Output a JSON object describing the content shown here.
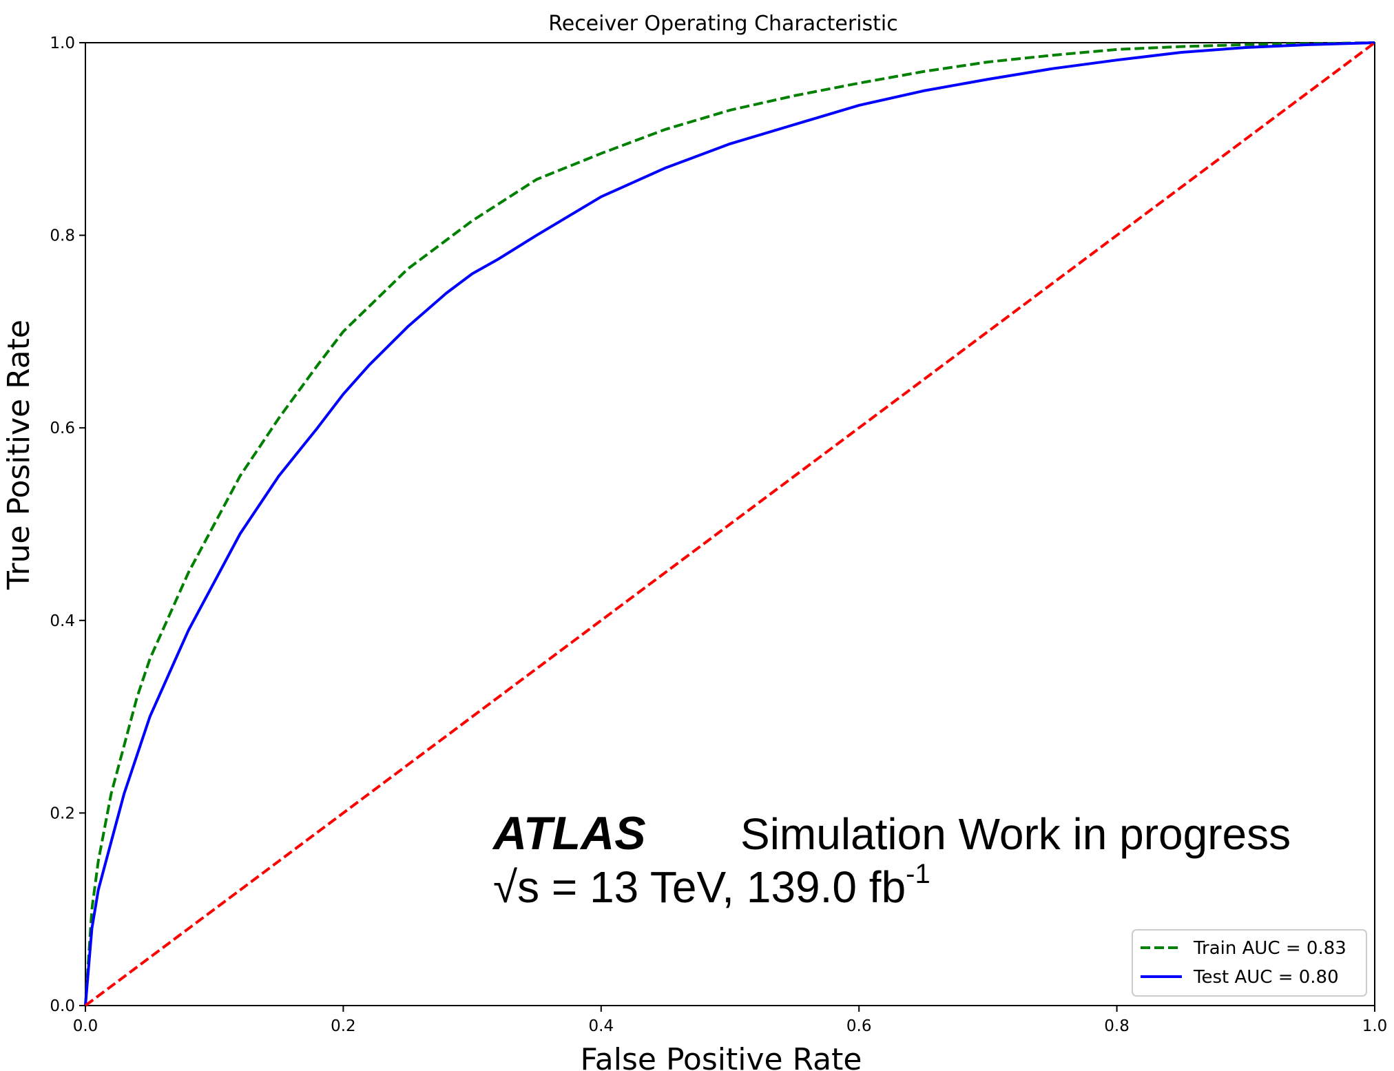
{
  "chart_data": {
    "type": "line",
    "title": "Receiver Operating Characteristic",
    "xlabel": "False Positive Rate",
    "ylabel": "True Positive Rate",
    "xlim": [
      0.0,
      1.0
    ],
    "ylim": [
      0.0,
      1.0
    ],
    "xticks": [
      "0.0",
      "0.2",
      "0.4",
      "0.6",
      "0.8",
      "1.0"
    ],
    "yticks": [
      "0.0",
      "0.2",
      "0.4",
      "0.6",
      "0.8",
      "1.0"
    ],
    "grid": false,
    "legend_position": "lower-right",
    "series": [
      {
        "name": "Train AUC = 0.83",
        "color": "#008000",
        "dash": "dashed",
        "x": [
          0.0,
          0.005,
          0.01,
          0.02,
          0.03,
          0.04,
          0.05,
          0.06,
          0.08,
          0.1,
          0.12,
          0.15,
          0.18,
          0.2,
          0.25,
          0.3,
          0.35,
          0.4,
          0.45,
          0.5,
          0.55,
          0.6,
          0.65,
          0.7,
          0.75,
          0.8,
          0.85,
          0.9,
          0.95,
          1.0
        ],
        "y": [
          0.0,
          0.1,
          0.15,
          0.22,
          0.27,
          0.32,
          0.36,
          0.39,
          0.45,
          0.5,
          0.55,
          0.61,
          0.665,
          0.7,
          0.765,
          0.815,
          0.858,
          0.885,
          0.91,
          0.93,
          0.945,
          0.958,
          0.97,
          0.98,
          0.987,
          0.993,
          0.996,
          0.998,
          0.999,
          1.0
        ]
      },
      {
        "name": "Test AUC = 0.80",
        "color": "#0000ff",
        "dash": "solid",
        "x": [
          0.0,
          0.005,
          0.01,
          0.02,
          0.03,
          0.04,
          0.05,
          0.06,
          0.07,
          0.08,
          0.1,
          0.12,
          0.15,
          0.18,
          0.2,
          0.22,
          0.25,
          0.28,
          0.3,
          0.32,
          0.35,
          0.4,
          0.45,
          0.5,
          0.55,
          0.6,
          0.65,
          0.7,
          0.75,
          0.8,
          0.85,
          0.9,
          0.95,
          1.0
        ],
        "y": [
          0.0,
          0.08,
          0.12,
          0.17,
          0.22,
          0.26,
          0.3,
          0.33,
          0.36,
          0.39,
          0.44,
          0.49,
          0.55,
          0.6,
          0.635,
          0.665,
          0.705,
          0.74,
          0.76,
          0.775,
          0.8,
          0.84,
          0.87,
          0.895,
          0.915,
          0.935,
          0.95,
          0.962,
          0.973,
          0.982,
          0.99,
          0.995,
          0.998,
          1.0
        ]
      },
      {
        "name": "",
        "color": "#ff0000",
        "dash": "dashed",
        "x": [
          0.0,
          1.0
        ],
        "y": [
          0.0,
          1.0
        ]
      }
    ],
    "annotation": {
      "experiment": "ATLAS",
      "label": "Simulation Work in progress",
      "energy_prefix": "√s = 13 TeV, 139.0 fb",
      "energy_superscript": "-1"
    }
  }
}
